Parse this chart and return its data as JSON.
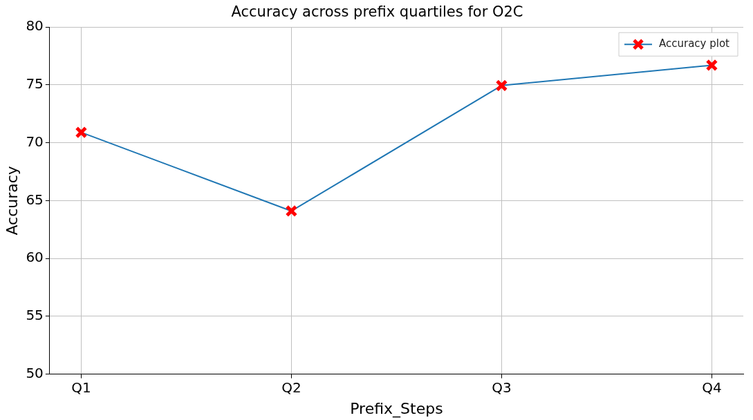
{
  "chart_data": {
    "type": "line",
    "title": "Accuracy across prefix quartiles for O2C",
    "xlabel": "Prefix_Steps",
    "ylabel": "Accuracy",
    "categories": [
      "Q1",
      "Q2",
      "Q3",
      "Q4"
    ],
    "series": [
      {
        "name": "Accuracy plot",
        "color": "#1f77b4",
        "colors": [
          "#ff0000",
          "#ff0000",
          "#ff0000",
          "#ff0000"
        ],
        "values": [
          70.9,
          64.1,
          74.95,
          76.7
        ]
      }
    ],
    "ylim": [
      50,
      80
    ],
    "yticks": [
      50,
      55,
      60,
      65,
      70,
      75,
      80
    ],
    "grid": true,
    "legend": "top right",
    "marker": "cross",
    "line_style": "solid"
  }
}
